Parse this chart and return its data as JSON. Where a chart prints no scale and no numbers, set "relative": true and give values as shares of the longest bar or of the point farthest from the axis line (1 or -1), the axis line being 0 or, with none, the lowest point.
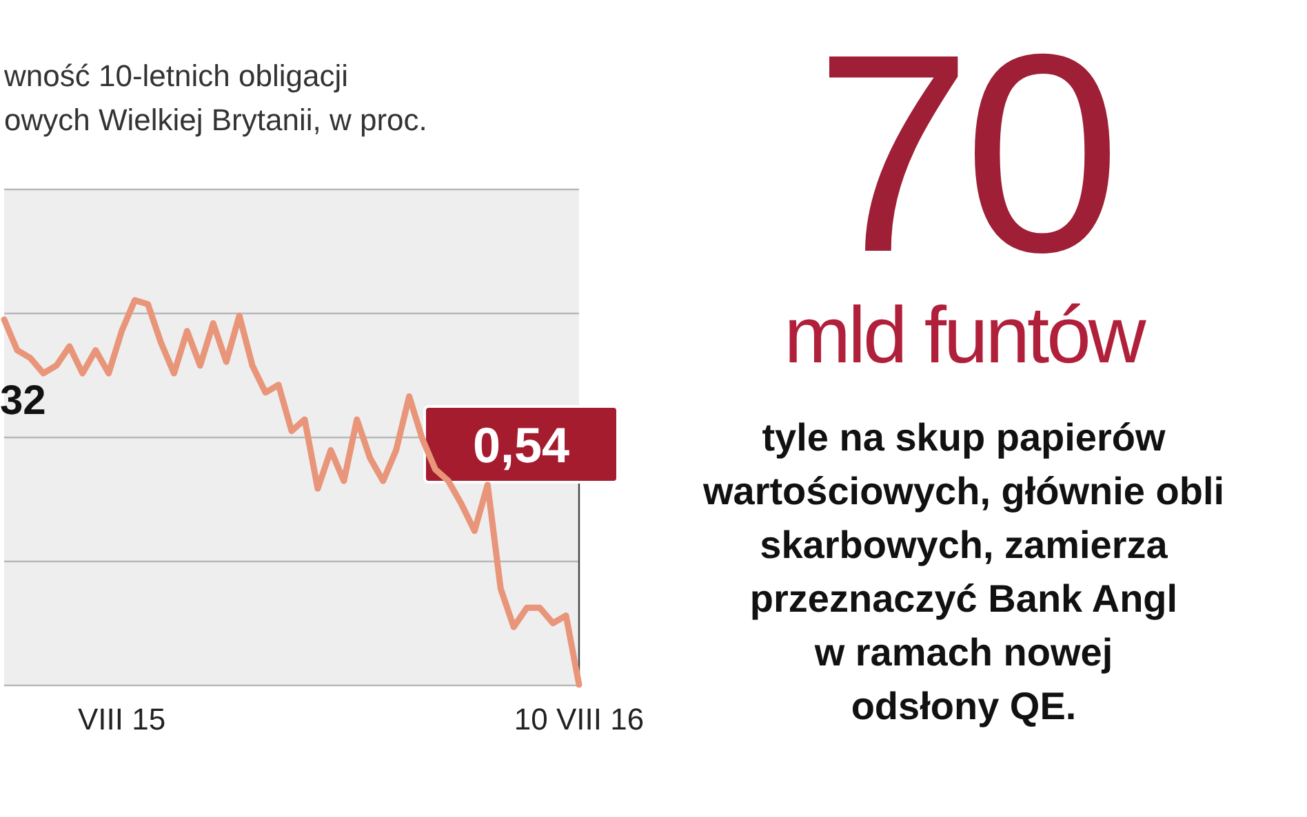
{
  "chart_data": [
    {
      "type": "line",
      "title": "wność 10-letnich obligacji\nowych Wielkiej Brytanii, w proc.",
      "relative": true,
      "grid": "y",
      "categories": [
        null,
        null,
        null,
        null,
        null,
        null,
        null,
        null,
        null,
        "VIII 15",
        null,
        null,
        null,
        null,
        null,
        null,
        null,
        null,
        null,
        null,
        null,
        null,
        null,
        null,
        null,
        null,
        null,
        null,
        null,
        null,
        null,
        null,
        null,
        null,
        null,
        null,
        null,
        null,
        null,
        null,
        null,
        null,
        null,
        null,
        "10 VIII 16"
      ],
      "series": [
        {
          "color": "#e8957a",
          "values": [
            0.95,
            0.87,
            0.85,
            0.81,
            0.83,
            0.88,
            0.81,
            0.87,
            0.81,
            0.92,
            1.0,
            0.99,
            0.89,
            0.81,
            0.92,
            0.83,
            0.94,
            0.84,
            0.96,
            0.83,
            0.76,
            0.78,
            0.66,
            0.69,
            0.51,
            0.61,
            0.53,
            0.69,
            0.59,
            0.53,
            0.61,
            0.75,
            0.64,
            0.56,
            0.53,
            0.47,
            0.4,
            0.52,
            0.25,
            0.15,
            0.2,
            0.2,
            0.16,
            0.18,
            0
          ]
        }
      ],
      "annotations": [
        "32",
        "0,54"
      ]
    },
    {
      "type": "other",
      "title": "70",
      "subtitle": "mld funtów",
      "annotations": [
        "tyle na skup papierów",
        "wartościowych, głównie obli",
        "skarbowych, zamierza",
        "przeznaczyć Bank Angl",
        "w ramach nowej",
        "odsłony QE."
      ]
    }
  ]
}
